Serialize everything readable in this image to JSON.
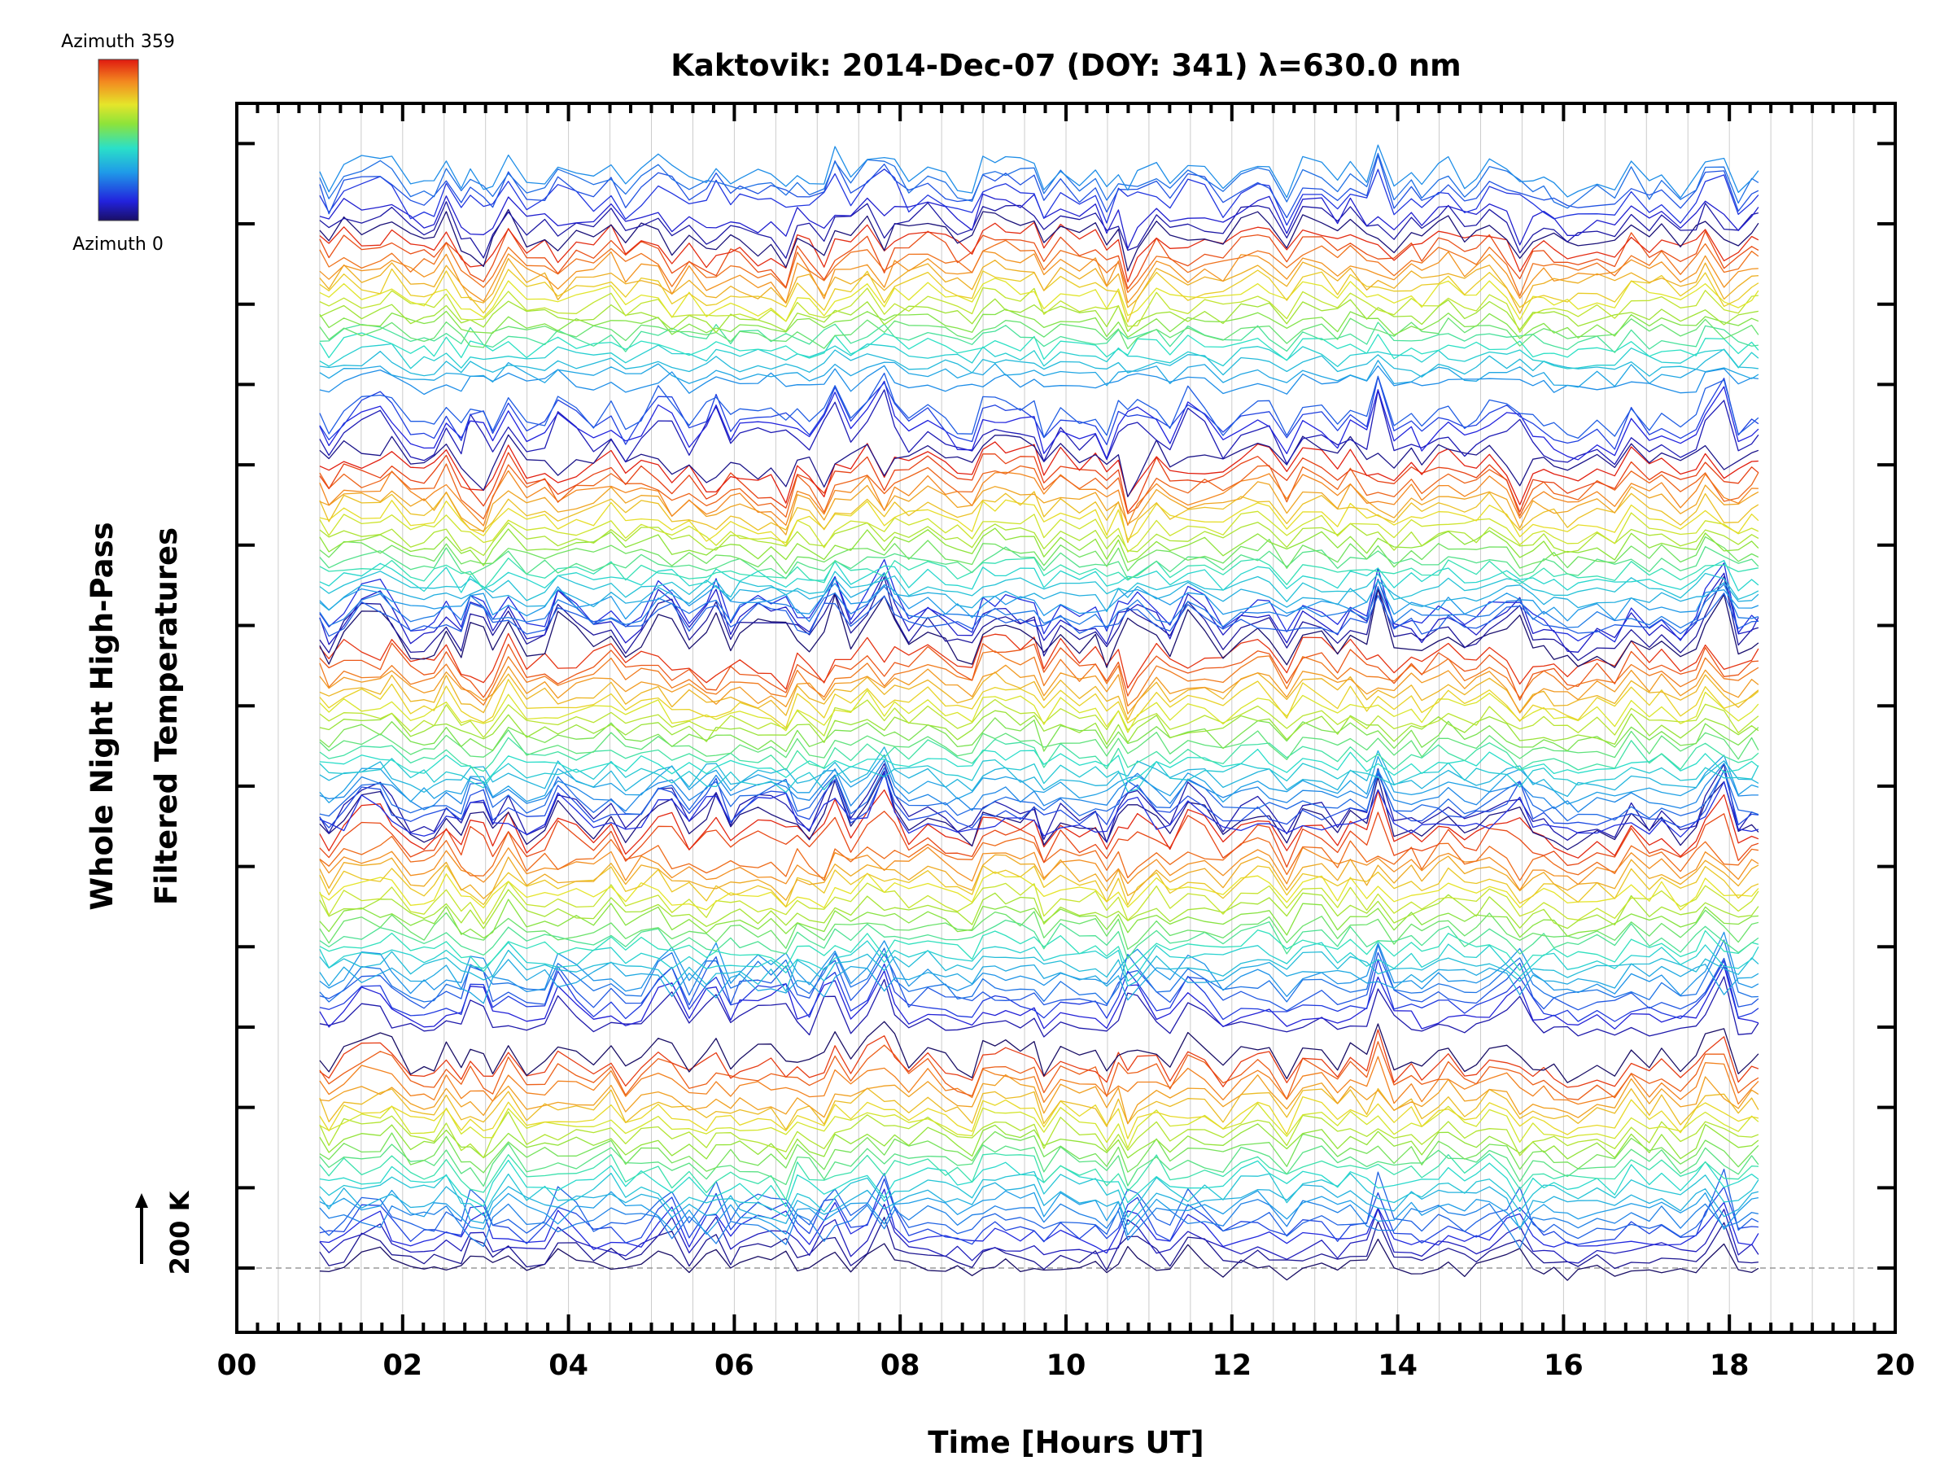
{
  "chart_data": {
    "type": "line",
    "title": "Kaktovik: 2014-Dec-07 (DOY: 341) λ=630.0 nm",
    "xlabel": "Time [Hours UT]",
    "ylabel_line1": "Whole Night High-Pass",
    "ylabel_line2": "Filtered Temperatures",
    "xlim": [
      0,
      20
    ],
    "x_ticks": [
      "00",
      "02",
      "04",
      "06",
      "08",
      "10",
      "12",
      "14",
      "16",
      "18",
      "20"
    ],
    "x_tick_values": [
      0,
      2,
      4,
      6,
      8,
      10,
      12,
      14,
      16,
      18,
      20
    ],
    "ylim": [
      -0.8,
      14.5
    ],
    "y_major_ticks": [
      0,
      1,
      2,
      3,
      4,
      5,
      6,
      7,
      8,
      9,
      10,
      11,
      12,
      13,
      14
    ],
    "baseline_y": 0,
    "scale_bar": {
      "label": "200 K",
      "value_k": 200
    },
    "colorbar": {
      "top_label": "Azimuth  359",
      "bottom_label": "Azimuth  0",
      "colormap": "rainbow"
    },
    "observation_window_hours": [
      1.0,
      18.35
    ],
    "series_description": "Stacked high-pass filtered temperature traces, one per azimuth (0-359 deg), colored by azimuth, offset vertically",
    "stack_groups": [
      {
        "name": "group-1",
        "base_offset": 0.0
      },
      {
        "name": "group-2",
        "base_offset": 3.0
      },
      {
        "name": "group-3",
        "base_offset": 5.5
      },
      {
        "name": "group-4",
        "base_offset": 8.0
      },
      {
        "name": "group-5",
        "base_offset": 11.0
      }
    ],
    "spike_times": [
      1.62,
      2.9,
      3.95,
      5.2,
      5.75,
      6.2,
      6.55,
      7.15,
      7.8,
      10.8,
      11.55,
      13.8,
      15.45,
      17.9
    ]
  },
  "colors": {
    "axis": "#000000",
    "grid": "#cccccc",
    "baseline": "#9a9a9a"
  }
}
